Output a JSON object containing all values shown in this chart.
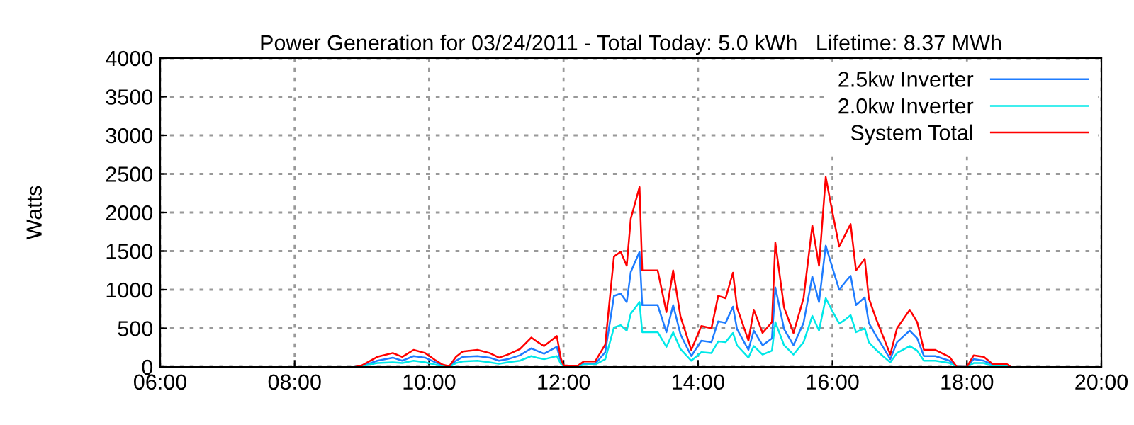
{
  "chart_data": {
    "type": "line",
    "title": "Power Generation for 03/24/2011 - Total Today: 5.0 kWh   Lifetime: 8.37 MWh",
    "ylabel": "Watts",
    "x": [
      8.9,
      9.0,
      9.23,
      9.46,
      9.6,
      9.77,
      9.94,
      10.09,
      10.2,
      10.3,
      10.4,
      10.5,
      10.72,
      10.9,
      11.04,
      11.17,
      11.35,
      11.52,
      11.6,
      11.71,
      11.9,
      11.96,
      12.0,
      12.2,
      12.3,
      12.47,
      12.62,
      12.75,
      12.85,
      12.94,
      13.0,
      13.13,
      13.17,
      13.25,
      13.4,
      13.53,
      13.63,
      13.74,
      13.9,
      14.05,
      14.2,
      14.3,
      14.41,
      14.52,
      14.58,
      14.75,
      14.83,
      14.96,
      15.1,
      15.15,
      15.28,
      15.42,
      15.57,
      15.7,
      15.8,
      15.9,
      16.0,
      16.1,
      16.2,
      16.27,
      16.35,
      16.48,
      16.54,
      16.65,
      16.75,
      16.86,
      16.96,
      17.15,
      17.26,
      17.36,
      17.53,
      17.74,
      17.85,
      18.0,
      18.1,
      18.25,
      18.38,
      18.59,
      18.65
    ],
    "series": [
      {
        "name": "2.5kw Inverter",
        "color": "#1e7cff",
        "values": [
          0,
          10,
          80,
          120,
          80,
          140,
          120,
          60,
          20,
          10,
          80,
          130,
          140,
          120,
          80,
          100,
          150,
          240,
          210,
          170,
          260,
          70,
          10,
          10,
          40,
          40,
          190,
          920,
          950,
          840,
          1230,
          1490,
          800,
          800,
          800,
          450,
          800,
          420,
          140,
          340,
          320,
          590,
          570,
          780,
          490,
          220,
          470,
          280,
          370,
          1030,
          490,
          280,
          570,
          1170,
          840,
          1570,
          1280,
          1000,
          1110,
          1180,
          800,
          900,
          570,
          400,
          260,
          100,
          320,
          470,
          370,
          140,
          140,
          80,
          0,
          0,
          100,
          80,
          30,
          30,
          0
        ]
      },
      {
        "name": "2.0kw Inverter",
        "color": "#00e8e8",
        "values": [
          0,
          10,
          50,
          60,
          50,
          80,
          60,
          30,
          10,
          0,
          50,
          70,
          80,
          60,
          40,
          60,
          80,
          140,
          120,
          100,
          140,
          40,
          10,
          0,
          30,
          30,
          100,
          510,
          540,
          470,
          690,
          840,
          450,
          450,
          450,
          260,
          450,
          230,
          80,
          190,
          180,
          330,
          320,
          440,
          280,
          120,
          270,
          160,
          210,
          580,
          280,
          160,
          320,
          660,
          470,
          890,
          720,
          560,
          620,
          670,
          450,
          500,
          320,
          220,
          140,
          60,
          180,
          270,
          210,
          80,
          80,
          50,
          0,
          0,
          50,
          50,
          10,
          10,
          0
        ]
      },
      {
        "name": "System Total",
        "color": "#ff0000",
        "values": [
          0,
          20,
          130,
          180,
          130,
          220,
          180,
          90,
          30,
          10,
          130,
          200,
          220,
          180,
          120,
          160,
          230,
          380,
          330,
          270,
          400,
          110,
          20,
          10,
          70,
          70,
          290,
          1430,
          1490,
          1310,
          1920,
          2330,
          1250,
          1250,
          1250,
          710,
          1250,
          650,
          220,
          530,
          500,
          920,
          890,
          1220,
          770,
          340,
          740,
          440,
          580,
          1610,
          770,
          440,
          890,
          1830,
          1310,
          2460,
          2000,
          1560,
          1730,
          1850,
          1250,
          1400,
          890,
          620,
          400,
          160,
          500,
          740,
          580,
          220,
          220,
          130,
          0,
          0,
          150,
          130,
          40,
          40,
          0
        ]
      }
    ],
    "xlim": [
      6,
      20
    ],
    "xticks": [
      {
        "value": 6,
        "label": "06:00"
      },
      {
        "value": 8,
        "label": "08:00"
      },
      {
        "value": 10,
        "label": "10:00"
      },
      {
        "value": 12,
        "label": "12:00"
      },
      {
        "value": 14,
        "label": "14:00"
      },
      {
        "value": 16,
        "label": "16:00"
      },
      {
        "value": 18,
        "label": "18:00"
      },
      {
        "value": 20,
        "label": "20:00"
      }
    ],
    "ylim": [
      0,
      4000
    ],
    "yticks": [
      0,
      500,
      1000,
      1500,
      2000,
      2500,
      3000,
      3500,
      4000
    ],
    "grid": true,
    "legend": "top right",
    "marker": "none",
    "line_style": "solid"
  }
}
